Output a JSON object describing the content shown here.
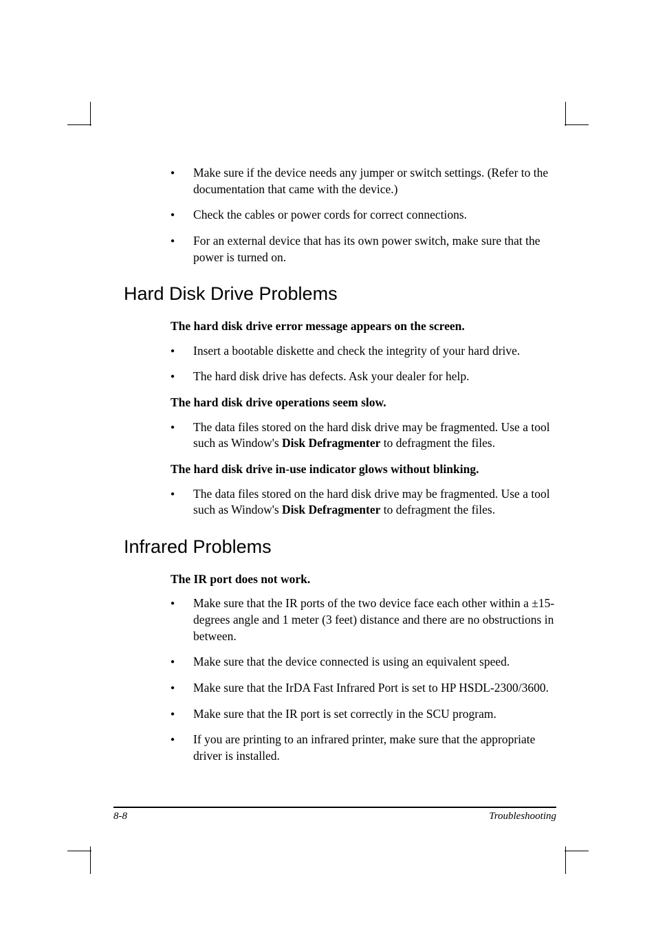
{
  "intro_bullets": [
    "Make sure if the device needs any jumper or switch settings. (Refer to the documentation that came with the device.)",
    "Check the cables or power cords for correct connections.",
    "For an external device that has its own power switch, make sure that the power is turned on."
  ],
  "section1": {
    "heading": "Hard Disk Drive Problems",
    "groups": [
      {
        "title": "The hard disk drive error message appears on the screen.",
        "bullets": [
          {
            "text": "Insert a bootable diskette and check the integrity of your hard drive."
          },
          {
            "text": "The hard disk drive has defects. Ask your dealer for help."
          }
        ]
      },
      {
        "title": "The hard disk drive operations seem slow.",
        "bullets": [
          {
            "pre": "The data files stored on the hard disk drive may be fragmented. Use a tool such as Window's ",
            "bold": "Disk Defragmenter",
            "post": " to defragment the files."
          }
        ]
      },
      {
        "title": "The hard disk drive in-use indicator glows without blinking.",
        "bullets": [
          {
            "pre": "The data files stored on the hard disk drive may be fragmented. Use a tool such as Window's ",
            "bold": "Disk Defragmenter",
            "post": " to defragment the files."
          }
        ]
      }
    ]
  },
  "section2": {
    "heading": "Infrared Problems",
    "groups": [
      {
        "title": "The IR port does not work.",
        "bullets": [
          {
            "text": "Make sure that the IR ports of the two device face each other within a ±15-degrees angle and 1 meter (3 feet) distance and there are no obstructions in between."
          },
          {
            "text": "Make sure that the device connected is using an equivalent speed."
          },
          {
            "text": "Make sure that the IrDA Fast Infrared Port is set to HP HSDL-2300/3600."
          },
          {
            "text": "Make sure that the IR port is set correctly in the SCU program."
          },
          {
            "text": "If you are printing to an infrared printer, make sure that the appropriate driver is installed."
          }
        ]
      }
    ]
  },
  "footer": {
    "left": "8-8",
    "right": "Troubleshooting"
  }
}
